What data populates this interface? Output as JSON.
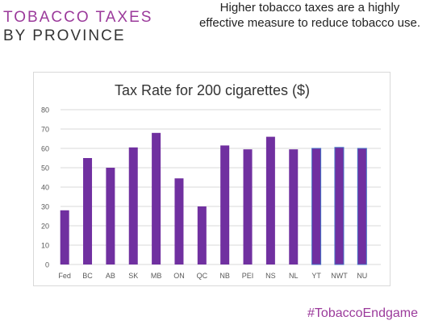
{
  "header": {
    "title_line1": "TOBACCO TAXES",
    "title_line2": "BY PROVINCE",
    "tagline": "Higher tobacco taxes are a highly effective measure to reduce tobacco use."
  },
  "footer": {
    "hashtag": "#TobaccoEndgame"
  },
  "colors": {
    "accent": "#9b3a9b",
    "bar": "#7030a0",
    "bar_outline": "#4472c4"
  },
  "chart_data": {
    "type": "bar",
    "title": "Tax Rate for 200 cigarettes ($)",
    "xlabel": "",
    "ylabel": "",
    "categories": [
      "Fed",
      "BC",
      "AB",
      "SK",
      "MB",
      "ON",
      "QC",
      "NB",
      "PEI",
      "NS",
      "NL",
      "YT",
      "NWT",
      "NU"
    ],
    "values": [
      28,
      55,
      50,
      60.5,
      68,
      44.5,
      30,
      61.5,
      59.5,
      66,
      59.5,
      60,
      60.5,
      60
    ],
    "ylim": [
      0,
      80
    ],
    "yticks": [
      0,
      10,
      20,
      30,
      40,
      50,
      60,
      70,
      80
    ],
    "grid": true,
    "legend": "none"
  }
}
